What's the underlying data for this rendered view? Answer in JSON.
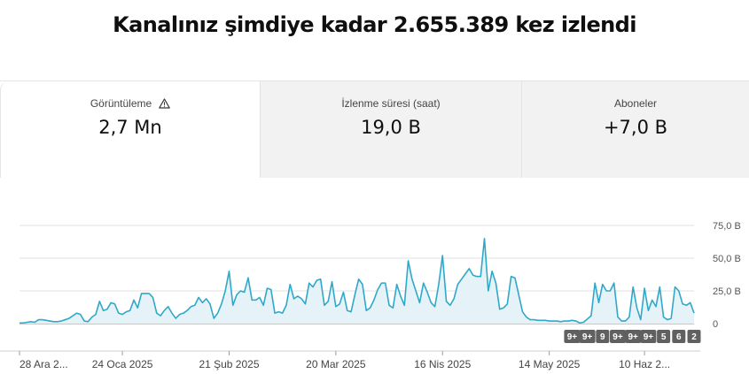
{
  "headline": "Kanalınız şimdiye kadar 2.655.389 kez izlendi",
  "metric_tabs": [
    {
      "label": "Görüntüleme",
      "value": "2,7 Mn",
      "icon": "warning-icon",
      "selected": true
    },
    {
      "label": "İzlenme süresi (saat)",
      "value": "19,0 B",
      "selected": false
    },
    {
      "label": "Aboneler",
      "value": "+7,0 B",
      "selected": false
    }
  ],
  "colors": {
    "line": "#30a8c9",
    "fill": "#e5f3f8",
    "grid": "#e0e0e0",
    "badge_bg": "#606060",
    "badge_text": "#ffffff",
    "selected_tab": "#ffffff",
    "unselected_tab": "#f2f2f2"
  },
  "chart_data": {
    "type": "area",
    "ylim": [
      0,
      75
    ],
    "y_ticks": [
      {
        "value": 75,
        "label": "75,0 B"
      },
      {
        "value": 50,
        "label": "50,0 B"
      },
      {
        "value": 25,
        "label": "25,0 B"
      },
      {
        "value": 0,
        "label": "0"
      }
    ],
    "x_ticks": [
      "28 Ara 2...",
      "24 Oca 2025",
      "21 Şub 2025",
      "20 Mar 2025",
      "16 Nis 2025",
      "14 May 2025",
      "10 Haz 2..."
    ],
    "x_tick_index": [
      0,
      27,
      55,
      83,
      111,
      139,
      164
    ],
    "values": [
      0.5,
      0.5,
      1,
      1.5,
      1,
      3,
      3,
      2.5,
      2,
      1.5,
      1.5,
      2,
      3,
      4,
      6,
      8,
      7,
      2,
      1.5,
      5,
      7,
      17,
      10,
      11,
      16,
      15,
      8,
      7,
      9,
      10,
      18,
      12,
      23,
      23,
      23,
      20,
      8,
      6,
      10,
      13,
      8,
      4,
      7,
      8,
      10,
      13,
      14,
      20,
      16,
      19,
      15,
      4,
      8,
      15,
      25,
      40,
      14,
      22,
      25,
      24,
      35,
      18,
      18,
      20,
      14,
      27,
      26,
      8,
      9,
      8,
      14,
      30,
      19,
      21,
      19,
      15,
      31,
      28,
      33,
      34,
      14,
      17,
      32,
      13,
      15,
      24,
      10,
      9,
      22,
      34,
      30,
      10,
      12,
      18,
      26,
      31,
      31,
      14,
      12,
      30,
      21,
      14,
      48,
      34,
      25,
      16,
      31,
      24,
      16,
      13,
      30,
      52,
      17,
      14,
      19,
      30,
      34,
      38,
      42,
      37,
      36,
      36,
      65,
      25,
      40,
      31,
      11,
      12,
      15,
      36,
      35,
      22,
      9,
      5,
      3,
      3,
      2.5,
      2.5,
      2.5,
      2,
      2,
      2,
      1.5,
      2,
      2,
      2.5,
      2,
      0.5,
      1,
      3.5,
      6,
      31,
      16,
      30,
      25,
      25,
      31,
      5,
      2,
      2,
      5,
      28,
      12,
      3,
      27,
      10,
      18,
      13,
      28,
      5,
      3,
      4,
      28,
      25,
      15,
      14,
      16,
      8
    ],
    "badges": [
      {
        "label": "9+",
        "index": 145
      },
      {
        "label": "9+",
        "index": 149
      },
      {
        "label": "9",
        "index": 153
      },
      {
        "label": "9+",
        "index": 157
      },
      {
        "label": "9+",
        "index": 161
      },
      {
        "label": "9+",
        "index": 165
      },
      {
        "label": "5",
        "index": 169
      },
      {
        "label": "6",
        "index": 173
      },
      {
        "label": "2",
        "index": 177
      }
    ]
  }
}
